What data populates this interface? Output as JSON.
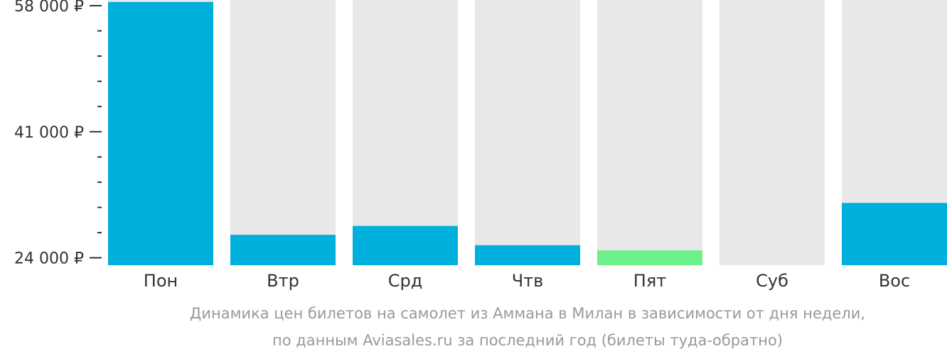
{
  "chart_data": {
    "type": "bar",
    "categories": [
      "Пон",
      "Втр",
      "Срд",
      "Чтв",
      "Пят",
      "Суб",
      "Вос"
    ],
    "values": [
      58500,
      27100,
      28300,
      25700,
      25000,
      null,
      31400
    ],
    "ylim": [
      23000,
      58000
    ],
    "yticks": [
      {
        "value": 58000,
        "label": "58 000 ₽"
      },
      {
        "value": 41000,
        "label": "41 000 ₽"
      },
      {
        "value": 24000,
        "label": "24 000 ₽"
      }
    ],
    "minor_yticks": [
      54600,
      51200,
      47800,
      44400,
      37600,
      34200,
      30800,
      27400
    ],
    "highlight_index": 4,
    "colors": {
      "bar": "#00b0dc",
      "highlight": "#6ef08b",
      "background_column": "#e8e8e8",
      "tick_text": "#333333",
      "caption_text": "#999999"
    },
    "caption": [
      "Динамика цен билетов на самолет из Аммана в Милан в зависимости от дня недели,",
      "по данным Aviasales.ru за последний год (билеты туда-обратно)"
    ]
  }
}
